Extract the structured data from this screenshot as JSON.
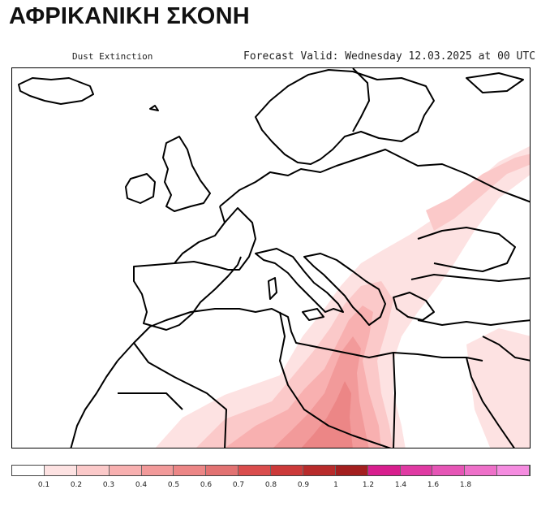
{
  "header": {
    "title": "ΑΦΡΙΚΑΝΙΚΗ ΣΚΟΝΗ"
  },
  "map": {
    "field_label": "Dust Extinction",
    "forecast_text": "Forecast Valid:  Wednesday 12.03.2025 at 00 UTC"
  },
  "legend": {
    "colors": [
      "#ffffff",
      "#fde2e2",
      "#fbc9c9",
      "#f8b0b0",
      "#f29a9a",
      "#ec8686",
      "#e27272",
      "#da4d4d",
      "#cc3a3a",
      "#b82b2b",
      "#a31f1f",
      "#d81e8e",
      "#e03aa3",
      "#e655b6",
      "#ee70c9",
      "#f58ce0"
    ],
    "labels": [
      "0.1",
      "0.2",
      "0.3",
      "0.4",
      "0.5",
      "0.6",
      "0.7",
      "0.8",
      "0.9",
      "1",
      "1.2",
      "1.4",
      "1.6",
      "1.8"
    ]
  }
}
